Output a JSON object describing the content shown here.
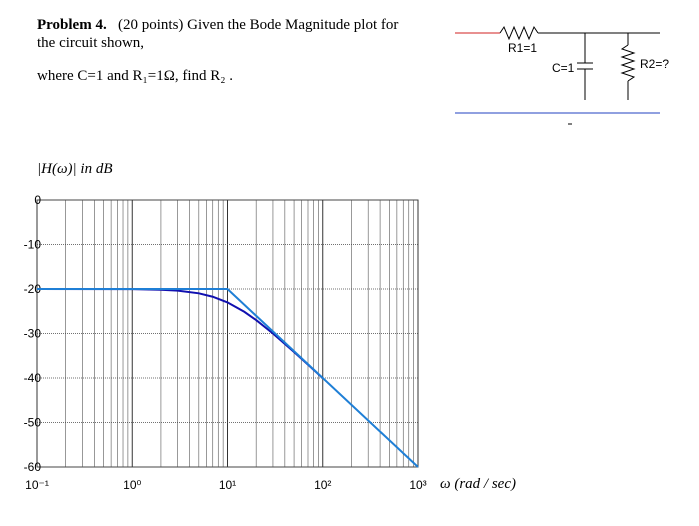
{
  "problem": {
    "heading": "Problem 4.",
    "line1": "(20 points) Given the Bode Magnitude plot for",
    "line2": "the circuit shown,",
    "given": "where C=1  and  R₁=1Ω,  find R₂ ."
  },
  "circuit": {
    "r1": "R1=1",
    "c": "C=1",
    "r2": "R2=?"
  },
  "chart_data": {
    "type": "line",
    "ylabel": "|H(ω)| in dB",
    "xlabel": "ω (rad / sec)",
    "xscale": "log",
    "xlim": [
      0.1,
      1000
    ],
    "xticks": [
      {
        "value": 0.1,
        "label": "10⁻¹"
      },
      {
        "value": 1,
        "label": "10⁰"
      },
      {
        "value": 10,
        "label": "10¹"
      },
      {
        "value": 100,
        "label": "10²"
      },
      {
        "value": 1000,
        "label": "10³"
      }
    ],
    "ylim": [
      -60,
      0
    ],
    "yticks": [
      0,
      -10,
      -20,
      -30,
      -40,
      -50,
      -60
    ],
    "grid": true,
    "minor_grid": true,
    "series": [
      {
        "color": "#1010b0",
        "x": [
          0.1,
          1,
          2,
          3,
          5,
          7,
          10,
          15,
          20,
          30,
          50,
          70,
          100
        ],
        "values": [
          -20,
          -20.04,
          -20.17,
          -20.37,
          -20.97,
          -21.74,
          -23.01,
          -25.12,
          -26.99,
          -30,
          -34.15,
          -37,
          -40.04
        ]
      },
      {
        "color": "#1f7fd6",
        "x": [
          0.1,
          10,
          1000
        ],
        "values": [
          -20,
          -20,
          -60
        ]
      }
    ]
  }
}
